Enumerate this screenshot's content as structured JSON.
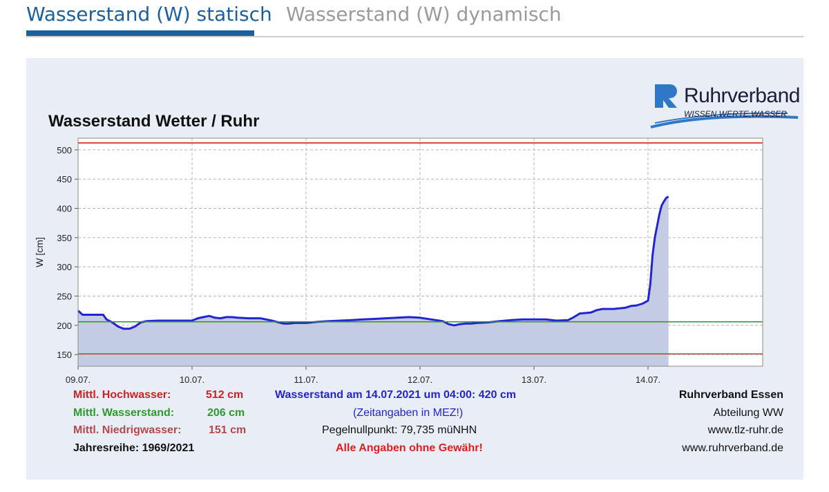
{
  "tabs": [
    {
      "label": "Wasserstand (W) statisch",
      "active": true
    },
    {
      "label": "Wasserstand (W) dynamisch",
      "active": false
    }
  ],
  "logo": {
    "name": "Ruhrverband",
    "tagline": "WISSEN,WERTE,WASSER"
  },
  "chart_data": {
    "type": "area",
    "title": "Wasserstand Wetter / Ruhr",
    "ylabel": "W [cm]",
    "xlabel": "",
    "ylim": [
      130,
      520
    ],
    "yticks": [
      150,
      200,
      250,
      300,
      350,
      400,
      450,
      500
    ],
    "xlim": [
      0,
      6
    ],
    "xticks": [
      {
        "x": 0,
        "label": "09.07."
      },
      {
        "x": 1,
        "label": "10.07."
      },
      {
        "x": 2,
        "label": "11.07."
      },
      {
        "x": 3,
        "label": "12.07."
      },
      {
        "x": 4,
        "label": "13.07."
      },
      {
        "x": 5,
        "label": "14.07."
      }
    ],
    "grid": true,
    "reference_lines": [
      {
        "name": "Mittl. Hochwasser",
        "value": 512,
        "color": "#cc2222"
      },
      {
        "name": "Mittl. Wasserstand",
        "value": 206,
        "color": "#2e9a2e"
      },
      {
        "name": "Mittl. Niedrigwasser",
        "value": 151,
        "color": "#b34a4a"
      }
    ],
    "series": [
      {
        "color": "#2323d6",
        "fill": "#c3cce3",
        "x": [
          0,
          0.04,
          0.08,
          0.22,
          0.25,
          0.3,
          0.35,
          0.4,
          0.45,
          0.5,
          0.55,
          0.6,
          0.7,
          0.8,
          0.9,
          1.0,
          1.05,
          1.1,
          1.15,
          1.2,
          1.25,
          1.3,
          1.35,
          1.4,
          1.5,
          1.6,
          1.7,
          1.8,
          1.85,
          1.9,
          2.0,
          2.1,
          2.2,
          2.3,
          2.4,
          2.5,
          2.6,
          2.7,
          2.8,
          2.9,
          3.0,
          3.1,
          3.2,
          3.25,
          3.3,
          3.35,
          3.4,
          3.45,
          3.5,
          3.6,
          3.7,
          3.8,
          3.9,
          4.0,
          4.1,
          4.2,
          4.3,
          4.35,
          4.4,
          4.5,
          4.55,
          4.6,
          4.7,
          4.8,
          4.85,
          4.9,
          4.95,
          5.0,
          5.02,
          5.04,
          5.06,
          5.08,
          5.1,
          5.12,
          5.14,
          5.16,
          5.18
        ],
        "values": [
          225,
          218,
          218,
          218,
          210,
          205,
          198,
          194,
          194,
          198,
          205,
          207,
          208,
          208,
          208,
          208,
          212,
          214,
          216,
          213,
          212,
          214,
          214,
          213,
          212,
          212,
          208,
          203,
          203,
          204,
          204,
          206,
          207,
          208,
          209,
          210,
          211,
          212,
          213,
          214,
          213,
          210,
          207,
          202,
          200,
          202,
          203,
          203,
          204,
          205,
          207,
          209,
          210,
          210,
          210,
          208,
          209,
          214,
          220,
          222,
          226,
          228,
          228,
          230,
          233,
          234,
          237,
          242,
          270,
          320,
          350,
          370,
          390,
          405,
          412,
          418,
          420
        ]
      }
    ],
    "annotations": {
      "hochwasser_label": "Mittl. Hochwasser:",
      "hochwasser_value": "512 cm",
      "wasserstand_label": "Mittl. Wasserstand:",
      "wasserstand_value": "206 cm",
      "niedrigwasser_label": "Mittl. Niedrigwasser:",
      "niedrigwasser_value": "151 cm",
      "jahresreihe": "Jahresreihe: 1969/2021",
      "current": "Wasserstand am 14.07.2021 um 04:00: 420 cm",
      "zeitangaben": "(Zeitangaben in MEZ!)",
      "pegelnullpunkt": "Pegelnullpunkt:  79,735 müNHN",
      "disclaimer": "Alle Angaben ohne Gewähr!",
      "org": "Ruhrverband Essen",
      "abteilung": "Abteilung WW",
      "web1": "www.tlz-ruhr.de",
      "web2": "www.ruhrverband.de"
    }
  }
}
